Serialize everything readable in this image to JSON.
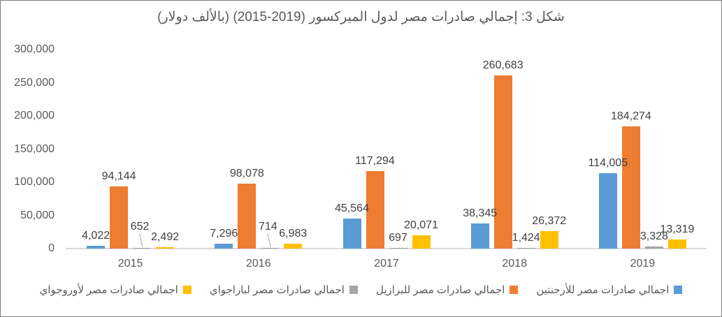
{
  "colors": {
    "background": "#FFFFFF",
    "border": "#808080",
    "title_text": "#595959",
    "axis_text": "#595959",
    "data_label_text": "#404040",
    "axis_line": "#D9D9D9",
    "leader_line": "#A6A6A6",
    "series_blue": "#5B9BD5",
    "series_orange": "#ED7D31",
    "series_gray": "#A5A5A5",
    "series_yellow": "#FFC000"
  },
  "chart_data": {
    "type": "bar",
    "title": "شكل 3: إجمالي صادرات مصر لدول الميركسور (2019-2015) (بالألف دولار)",
    "categories": [
      "2015",
      "2016",
      "2017",
      "2018",
      "2019"
    ],
    "series": [
      {
        "key": "argentina",
        "name": "اجمالي صادرات مصر للأرجنتين",
        "color": "#5B9BD5",
        "values": [
          4022,
          7296,
          45564,
          38345,
          114005
        ]
      },
      {
        "key": "brazil",
        "name": "اجمالي صادرات مصر للبرازيل",
        "color": "#ED7D31",
        "values": [
          94144,
          98078,
          117294,
          260683,
          184274
        ]
      },
      {
        "key": "paraguay",
        "name": "اجمالي صادرات مصر لباراجواي",
        "color": "#A5A5A5",
        "values": [
          652,
          714,
          697,
          1424,
          3328
        ]
      },
      {
        "key": "uruguay",
        "name": "اجمالي صادرات مصر لأوروجواي",
        "color": "#FFC000",
        "values": [
          2492,
          6983,
          20071,
          26372,
          13319
        ]
      }
    ],
    "data_labels": [
      "4,022",
      "94,144",
      "652",
      "2,492",
      "7,296",
      "98,078",
      "714",
      "6,983",
      "45,564",
      "117,294",
      "697",
      "20,071",
      "38,345",
      "260,683",
      "1,424",
      "26,372",
      "114,005",
      "184,274",
      "3,328",
      "13,319"
    ],
    "xlabel": "",
    "ylabel": "",
    "ylim": [
      0,
      300000
    ],
    "ytick_step": 50000,
    "yticks": [
      "0",
      "50,000",
      "100,000",
      "150,000",
      "200,000",
      "250,000",
      "300,000"
    ],
    "grid": false,
    "legend_position": "bottom",
    "rtl": true
  }
}
